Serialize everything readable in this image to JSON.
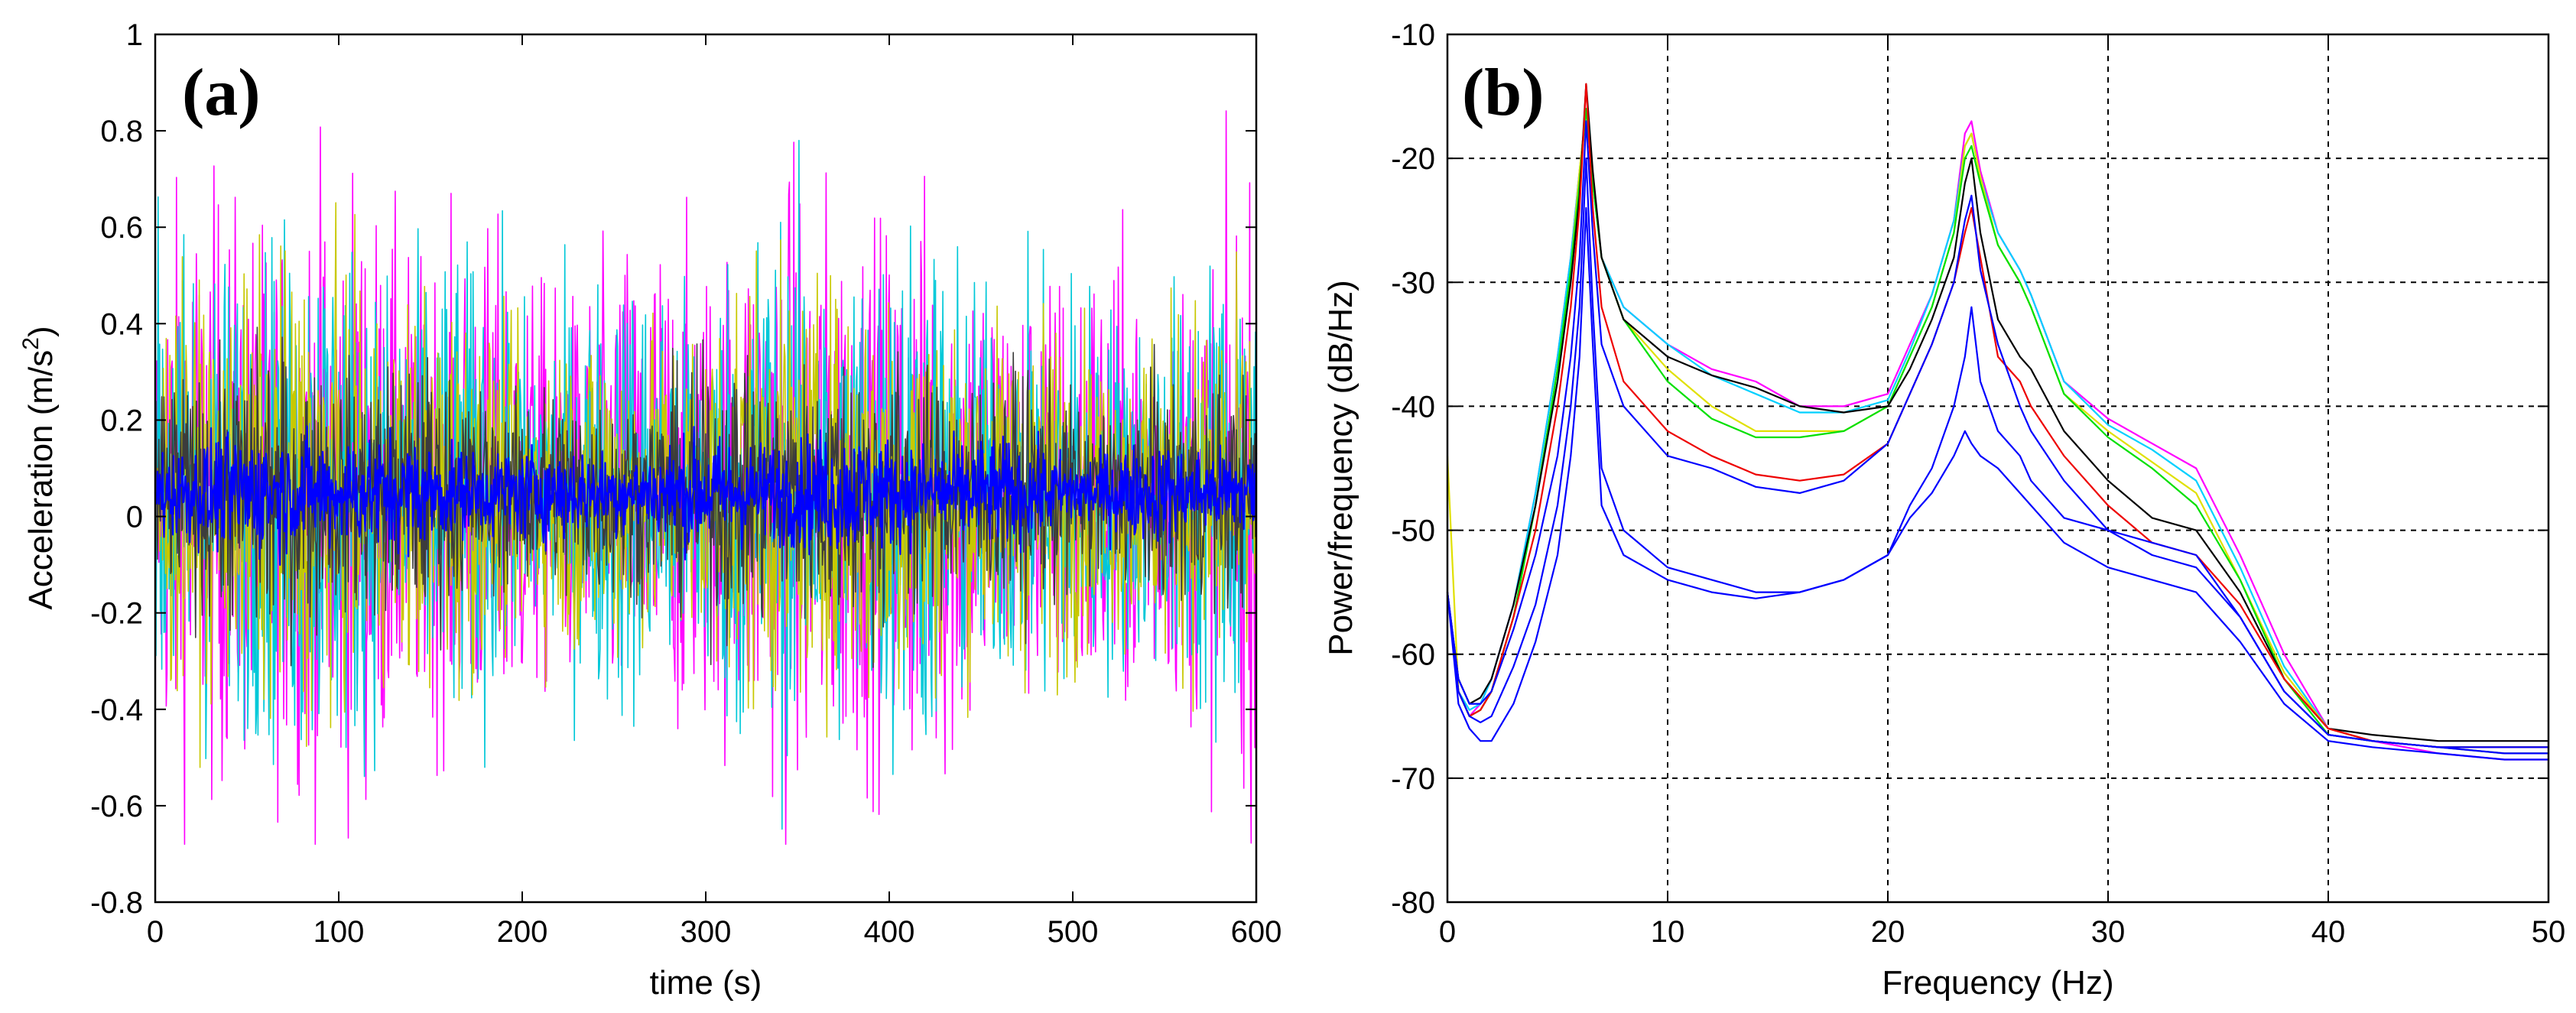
{
  "chart_data": [
    {
      "type": "line",
      "panel": "(a)",
      "title": "",
      "xlabel": "time (s)",
      "ylabel": "Acceleration (m/s",
      "ylabel_sup": "2",
      "ylabel_end": ")",
      "xlim": [
        0,
        600
      ],
      "ylim": [
        -0.8,
        1
      ],
      "xticks": [
        0,
        100,
        200,
        300,
        400,
        500,
        600
      ],
      "yticks": [
        -0.8,
        -0.6,
        -0.4,
        -0.2,
        0,
        0.2,
        0.4,
        0.6,
        0.8,
        1
      ],
      "grid": false,
      "series": [
        {
          "name": "sensor-magenta",
          "color": "#ff00ff",
          "amplitude": 0.3,
          "peak": 0.88,
          "trough": -0.68
        },
        {
          "name": "sensor-cyan",
          "color": "#00c8d8",
          "amplitude": 0.27,
          "peak": 0.78,
          "trough": -0.66
        },
        {
          "name": "sensor-yellow",
          "color": "#c8c800",
          "amplitude": 0.22,
          "peak": 0.72,
          "trough": -0.55
        },
        {
          "name": "sensor-dark",
          "color": "#3c3c3c",
          "amplitude": 0.14,
          "peak": 0.45,
          "trough": -0.4
        },
        {
          "name": "sensor-blue",
          "color": "#0000ff",
          "amplitude": 0.06,
          "peak": 0.25,
          "trough": -0.12
        }
      ]
    },
    {
      "type": "line",
      "panel": "(b)",
      "title": "",
      "xlabel": "Frequency (Hz)",
      "ylabel": "Power/frequency (dB/Hz)",
      "xlim": [
        0,
        50
      ],
      "ylim": [
        -80,
        -10
      ],
      "xticks": [
        0,
        10,
        20,
        30,
        40,
        50
      ],
      "yticks": [
        -80,
        -70,
        -60,
        -50,
        -40,
        -30,
        -20,
        -10
      ],
      "grid": true,
      "x": [
        0,
        0.5,
        1,
        1.5,
        2,
        3,
        4,
        5,
        5.6,
        6,
        6.3,
        6.6,
        7,
        8,
        10,
        12,
        14,
        16,
        18,
        20,
        21,
        22,
        23,
        23.5,
        23.8,
        24.2,
        25,
        26,
        26.5,
        28,
        30,
        32,
        34,
        36,
        38,
        40,
        42,
        45,
        48,
        50
      ],
      "series": [
        {
          "name": "magenta",
          "color": "#ff00ff",
          "values": [
            -55,
            -63,
            -65,
            -64,
            -62,
            -56,
            -47,
            -36,
            -28,
            -21,
            -16,
            -22,
            -28,
            -32,
            -35,
            -37,
            -38,
            -40,
            -40,
            -39,
            -35,
            -31,
            -25,
            -18,
            -17,
            -21,
            -26,
            -29,
            -31,
            -38,
            -41,
            -43,
            -45,
            -52,
            -60,
            -66,
            -67,
            -68,
            -68.5,
            -68.5
          ]
        },
        {
          "name": "cyan",
          "color": "#00d0ff",
          "values": [
            -55,
            -63,
            -64.5,
            -64,
            -62,
            -56,
            -47,
            -36,
            -28,
            -21,
            -16,
            -22,
            -28,
            -32,
            -35,
            -37.5,
            -39,
            -40.5,
            -40.5,
            -39.5,
            -35.5,
            -31,
            -25,
            -19,
            -18,
            -21.5,
            -26,
            -29,
            -31,
            -38,
            -41.5,
            -43.5,
            -46,
            -53,
            -61,
            -66,
            -67,
            -67.5,
            -68,
            -68
          ]
        },
        {
          "name": "yellow",
          "color": "#e0e000",
          "values": [
            -44,
            -63,
            -65,
            -64.5,
            -63,
            -57,
            -48,
            -37,
            -29,
            -21,
            -16,
            -22,
            -28,
            -33,
            -37,
            -40,
            -42,
            -42,
            -42,
            -40,
            -36,
            -32,
            -26,
            -19,
            -18,
            -21.5,
            -27,
            -30,
            -32,
            -39,
            -42,
            -44.5,
            -47,
            -54,
            -61.5,
            -66,
            -67,
            -67.5,
            -68,
            -68
          ]
        },
        {
          "name": "green",
          "color": "#00e000",
          "values": [
            -55,
            -63,
            -65,
            -64.5,
            -63,
            -57,
            -48,
            -37,
            -29,
            -22,
            -16,
            -22,
            -28,
            -33,
            -38,
            -41,
            -42.5,
            -42.5,
            -42,
            -40,
            -36,
            -32,
            -26,
            -20,
            -19,
            -22,
            -27,
            -30,
            -32,
            -39,
            -42.5,
            -45,
            -48,
            -54,
            -62,
            -66.5,
            -67,
            -67.5,
            -67.5,
            -67.5
          ]
        },
        {
          "name": "black",
          "color": "#000000",
          "values": [
            -55,
            -62,
            -64,
            -63.5,
            -62,
            -56,
            -48,
            -38,
            -30,
            -23,
            -14,
            -21,
            -28,
            -33,
            -36,
            -37.5,
            -38.5,
            -40,
            -40.5,
            -40,
            -37,
            -33,
            -28,
            -22,
            -20,
            -26,
            -33,
            -36,
            -37,
            -42,
            -46,
            -49,
            -50,
            -55,
            -62,
            -66,
            -66.5,
            -67,
            -67,
            -67
          ]
        },
        {
          "name": "red",
          "color": "#ee0000",
          "values": [
            -55,
            -63,
            -65,
            -64.5,
            -63,
            -57,
            -50,
            -40,
            -32,
            -24,
            -14,
            -24,
            -32,
            -38,
            -42,
            -44,
            -45.5,
            -46,
            -45.5,
            -43,
            -39,
            -35,
            -30,
            -26,
            -24,
            -28,
            -36,
            -38,
            -40,
            -44,
            -48,
            -51,
            -52,
            -56,
            -62,
            -66,
            -67,
            -67.5,
            -67.5,
            -67.5
          ]
        },
        {
          "name": "blue-1",
          "color": "#0000ff",
          "values": [
            -55,
            -62,
            -64,
            -64,
            -63,
            -58,
            -52,
            -44,
            -36,
            -28,
            -17,
            -26,
            -35,
            -40,
            -44,
            -45,
            -46.5,
            -47,
            -46,
            -43,
            -39,
            -35,
            -30,
            -25,
            -23,
            -29,
            -35,
            -40,
            -42,
            -46,
            -50,
            -52,
            -53,
            -57,
            -63,
            -66.5,
            -67,
            -67.5,
            -67.5,
            -67.5
          ]
        },
        {
          "name": "blue-2",
          "color": "#0000ff",
          "values": [
            -55,
            -63,
            -65,
            -65.5,
            -65,
            -61,
            -56,
            -48,
            -40,
            -32,
            -20,
            -32,
            -45,
            -50,
            -53,
            -54,
            -55,
            -55,
            -54,
            -52,
            -48,
            -45,
            -40,
            -36,
            -32,
            -38,
            -42,
            -44,
            -46,
            -49,
            -50,
            -51,
            -52,
            -57,
            -63,
            -66.5,
            -67,
            -67.5,
            -68,
            -68
          ]
        },
        {
          "name": "blue-3",
          "color": "#0000ff",
          "values": [
            -55,
            -64,
            -66,
            -67,
            -67,
            -64,
            -59,
            -52,
            -44,
            -36,
            -24,
            -35,
            -48,
            -52,
            -54,
            -55,
            -55.5,
            -55,
            -54,
            -52,
            -49,
            -47,
            -44,
            -42,
            -43,
            -44,
            -45,
            -47,
            -48,
            -51,
            -53,
            -54,
            -55,
            -59,
            -64,
            -67,
            -67.5,
            -68,
            -68.5,
            -68.5
          ]
        }
      ]
    }
  ]
}
